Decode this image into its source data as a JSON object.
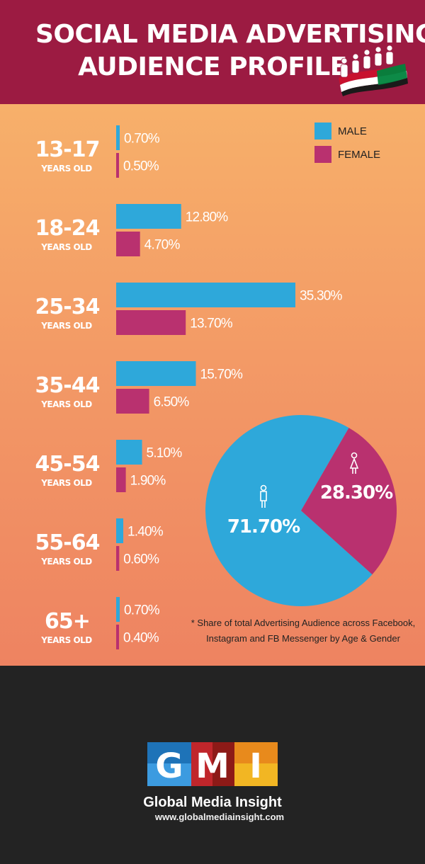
{
  "header": {
    "title_line1": "SOCIAL MEDIA ADVERTISING",
    "title_line2": "AUDIENCE PROFILE"
  },
  "footnote": {
    "line1": "* Share of total Advertising Audience across Facebook,",
    "line2": "Instagram and FB Messenger by Age & Gender"
  },
  "brand": {
    "logo_letters": [
      "G",
      "M",
      "I"
    ],
    "name": "Global Media Insight",
    "url": "www.globalmediainsight.com"
  },
  "colors": {
    "male": "#2ea8da",
    "female": "#b9316f",
    "header": "#9c1b42"
  },
  "chart_data": [
    {
      "type": "bar",
      "orientation": "horizontal",
      "categories": [
        "13-17",
        "18-24",
        "25-34",
        "35-44",
        "45-54",
        "55-64",
        "65+"
      ],
      "category_sublabel": "YEARS OLD",
      "series": [
        {
          "name": "MALE",
          "values": [
            0.7,
            12.8,
            35.3,
            15.7,
            5.1,
            1.4,
            0.7
          ],
          "labels": [
            "0.70%",
            "12.80%",
            "35.30%",
            "15.70%",
            "5.10%",
            "1.40%",
            "0.70%"
          ]
        },
        {
          "name": "FEMALE",
          "values": [
            0.5,
            4.7,
            13.7,
            6.5,
            1.9,
            0.6,
            0.4
          ],
          "labels": [
            "0.50%",
            "4.70%",
            "13.70%",
            "6.50%",
            "1.90%",
            "0.60%",
            "0.40%"
          ]
        }
      ],
      "legend": "top-right",
      "grid": false
    },
    {
      "type": "pie",
      "slices": [
        {
          "name": "male",
          "value": 71.7,
          "label": "71.70%",
          "icon": "male-person-icon"
        },
        {
          "name": "female",
          "value": 28.3,
          "label": "28.30%",
          "icon": "female-person-icon"
        }
      ]
    }
  ]
}
